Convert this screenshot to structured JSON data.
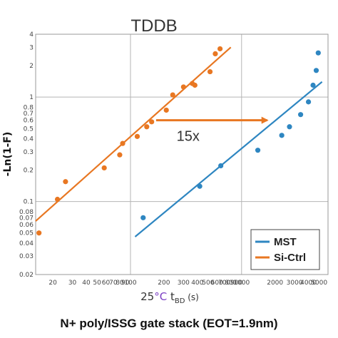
{
  "caption": "N+ poly/ISSG gate stack (EOT=1.9nm)",
  "chart_data": {
    "type": "scatter",
    "title": "TDDB",
    "xlabel": {
      "prefix": "25",
      "unit": "°C",
      "suffix": " t",
      "sub": "BD",
      "tail": " (s)"
    },
    "ylabel": "-Ln(1-F)",
    "xscale": "log",
    "yscale": "log",
    "xlim": [
      14,
      6000
    ],
    "ylim": [
      0.02,
      4
    ],
    "x_ticks": [
      {
        "v": 20,
        "label": "20"
      },
      {
        "v": 30,
        "label": "30"
      },
      {
        "v": 40,
        "label": "40"
      },
      {
        "v": 50,
        "label": "50"
      },
      {
        "v": 60,
        "label": "60"
      },
      {
        "v": 70,
        "label": "70"
      },
      {
        "v": 80,
        "label": "80"
      },
      {
        "v": 90,
        "label": "90"
      },
      {
        "v": 100,
        "label": "100"
      },
      {
        "v": 200,
        "label": "200"
      },
      {
        "v": 300,
        "label": "300"
      },
      {
        "v": 400,
        "label": "400"
      },
      {
        "v": 500,
        "label": "500"
      },
      {
        "v": 600,
        "label": "600"
      },
      {
        "v": 700,
        "label": "700"
      },
      {
        "v": 800,
        "label": "800"
      },
      {
        "v": 900,
        "label": "900"
      },
      {
        "v": 1000,
        "label": "1000"
      },
      {
        "v": 2000,
        "label": "2000"
      },
      {
        "v": 3000,
        "label": "3000"
      },
      {
        "v": 4000,
        "label": "4000"
      },
      {
        "v": 5000,
        "label": "5000"
      }
    ],
    "y_ticks": [
      {
        "v": 0.02,
        "label": "0.02"
      },
      {
        "v": 0.03,
        "label": "0.03"
      },
      {
        "v": 0.04,
        "label": "0.04"
      },
      {
        "v": 0.05,
        "label": "0.05"
      },
      {
        "v": 0.06,
        "label": "0.06"
      },
      {
        "v": 0.07,
        "label": "0.07"
      },
      {
        "v": 0.08,
        "label": "0.08"
      },
      {
        "v": 0.1,
        "label": "0.1"
      },
      {
        "v": 0.2,
        "label": "0.2"
      },
      {
        "v": 0.3,
        "label": "0.3"
      },
      {
        "v": 0.4,
        "label": "0.4"
      },
      {
        "v": 0.5,
        "label": "0.5"
      },
      {
        "v": 0.6,
        "label": "0.6"
      },
      {
        "v": 0.7,
        "label": "0.7"
      },
      {
        "v": 0.8,
        "label": "0.8"
      },
      {
        "v": 1,
        "label": "1"
      },
      {
        "v": 2,
        "label": "2"
      },
      {
        "v": 3,
        "label": "3"
      },
      {
        "v": 4,
        "label": "4"
      }
    ],
    "grid": "major",
    "legend_position": "bottom-right",
    "series": [
      {
        "name": "MST",
        "color": "#2e86c1",
        "points": [
          {
            "x": 130,
            "y": 0.07
          },
          {
            "x": 420,
            "y": 0.14
          },
          {
            "x": 650,
            "y": 0.22
          },
          {
            "x": 1400,
            "y": 0.31
          },
          {
            "x": 2300,
            "y": 0.43
          },
          {
            "x": 2700,
            "y": 0.52
          },
          {
            "x": 3400,
            "y": 0.68
          },
          {
            "x": 4000,
            "y": 0.9
          },
          {
            "x": 4400,
            "y": 1.3
          },
          {
            "x": 4700,
            "y": 1.8
          },
          {
            "x": 4900,
            "y": 2.65
          }
        ],
        "fit": [
          {
            "x": 110,
            "y": 0.046
          },
          {
            "x": 5300,
            "y": 1.4
          }
        ]
      },
      {
        "name": "Si-Ctrl",
        "color": "#e87722",
        "points": [
          {
            "x": 15,
            "y": 0.05
          },
          {
            "x": 22,
            "y": 0.105
          },
          {
            "x": 26,
            "y": 0.155
          },
          {
            "x": 58,
            "y": 0.21
          },
          {
            "x": 80,
            "y": 0.28
          },
          {
            "x": 85,
            "y": 0.36
          },
          {
            "x": 115,
            "y": 0.42
          },
          {
            "x": 140,
            "y": 0.52
          },
          {
            "x": 155,
            "y": 0.58
          },
          {
            "x": 210,
            "y": 0.75
          },
          {
            "x": 240,
            "y": 1.05
          },
          {
            "x": 300,
            "y": 1.25
          },
          {
            "x": 360,
            "y": 1.35
          },
          {
            "x": 380,
            "y": 1.3
          },
          {
            "x": 520,
            "y": 1.75
          },
          {
            "x": 580,
            "y": 2.6
          },
          {
            "x": 640,
            "y": 2.9
          }
        ],
        "fit": [
          {
            "x": 14,
            "y": 0.065
          },
          {
            "x": 800,
            "y": 3.0
          }
        ]
      }
    ],
    "annotations": [
      {
        "type": "arrow",
        "from": {
          "x": 170,
          "y": 0.6
        },
        "to": {
          "x": 1700,
          "y": 0.6
        },
        "color": "#e87722"
      },
      {
        "type": "text",
        "text": "15x",
        "at": {
          "x": 330,
          "y": 0.38
        }
      }
    ]
  }
}
